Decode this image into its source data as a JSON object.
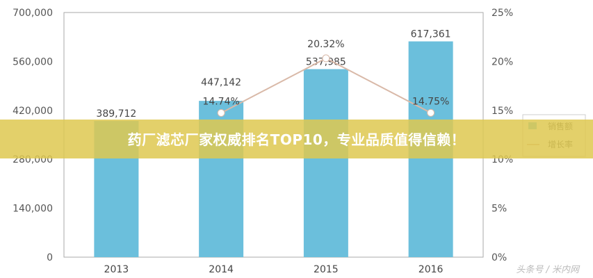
{
  "chart_data": {
    "type": "bar+line",
    "categories": [
      "2013",
      "2014",
      "2015",
      "2016"
    ],
    "series": [
      {
        "name": "销售额",
        "type": "bar",
        "axis": "left",
        "values": [
          389712,
          447142,
          537985,
          617361
        ],
        "labels": [
          "389,712",
          "447,142",
          "537,985",
          "617,361"
        ],
        "color": "#6bbfdc"
      },
      {
        "name": "增长率",
        "type": "line",
        "axis": "right",
        "values": [
          null,
          14.74,
          20.32,
          14.75
        ],
        "labels": [
          "",
          "14.74%",
          "20.32%",
          "14.75%"
        ],
        "color": "#d9b9a8"
      }
    ],
    "left_axis": {
      "ylim": [
        0,
        700000
      ],
      "ticks": [
        "0",
        "140,000",
        "280,000",
        "420,000",
        "560,000",
        "700,000"
      ]
    },
    "right_axis": {
      "ylim": [
        0,
        25
      ],
      "ticks": [
        "0%",
        "5%",
        "10%",
        "15%",
        "20%",
        "25%"
      ]
    },
    "grid": false,
    "legend": "right"
  },
  "banner": {
    "text": "药厂滤芯厂家权威排名TOP10，专业品质值得信赖！"
  },
  "watermark": "头条号 / 米内网"
}
